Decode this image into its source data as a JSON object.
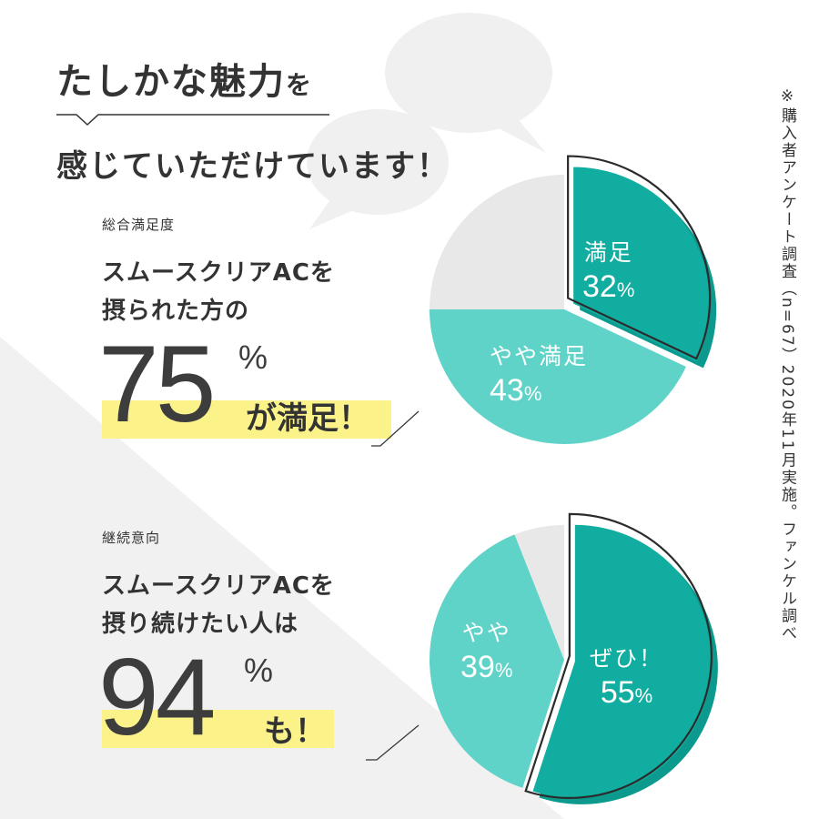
{
  "headline": {
    "line1_main": "たしかな魅力",
    "line1_particle": "を",
    "line2": "感じていただけています！"
  },
  "note": "※購入者アンケート調査（n=67）2020年11月実施。ファンケル調べ",
  "colors": {
    "teal_dark": "#11ada0",
    "teal_light": "#5fd3c8",
    "teal_shadow": "#0d9a8e",
    "gray_slice": "#e8e8e8",
    "highlight": "#fbf38a",
    "outline": "#2b2b2b"
  },
  "sections": [
    {
      "label": "総合満足度",
      "desc_line1": "スムースクリアACを",
      "desc_line2": "摂られた方の",
      "big_number": "75",
      "percent_sign": "%",
      "suffix": "が満足！"
    },
    {
      "label": "継続意向",
      "desc_line1": "スムースクリアACを",
      "desc_line2": "摂り続けたい人は",
      "big_number": "94",
      "percent_sign": "%",
      "suffix": "も！"
    }
  ],
  "chart_data": [
    {
      "type": "pie",
      "title": "総合満足度",
      "slices": [
        {
          "name": "満足",
          "value": 32,
          "label": "32",
          "unit": "%",
          "color": "#11ada0",
          "exploded": true
        },
        {
          "name": "やや満足",
          "value": 43,
          "label": "43",
          "unit": "%",
          "color": "#5fd3c8",
          "exploded": false
        },
        {
          "name": "",
          "value": 25,
          "label": "",
          "unit": "",
          "color": "#e8e8e8",
          "exploded": false
        }
      ]
    },
    {
      "type": "pie",
      "title": "継続意向",
      "slices": [
        {
          "name": "ぜひ！",
          "value": 55,
          "label": "55",
          "unit": "%",
          "color": "#11ada0",
          "exploded": true
        },
        {
          "name": "やや",
          "value": 39,
          "label": "39",
          "unit": "%",
          "color": "#5fd3c8",
          "exploded": false
        },
        {
          "name": "",
          "value": 6,
          "label": "",
          "unit": "",
          "color": "#e8e8e8",
          "exploded": false
        }
      ]
    }
  ]
}
